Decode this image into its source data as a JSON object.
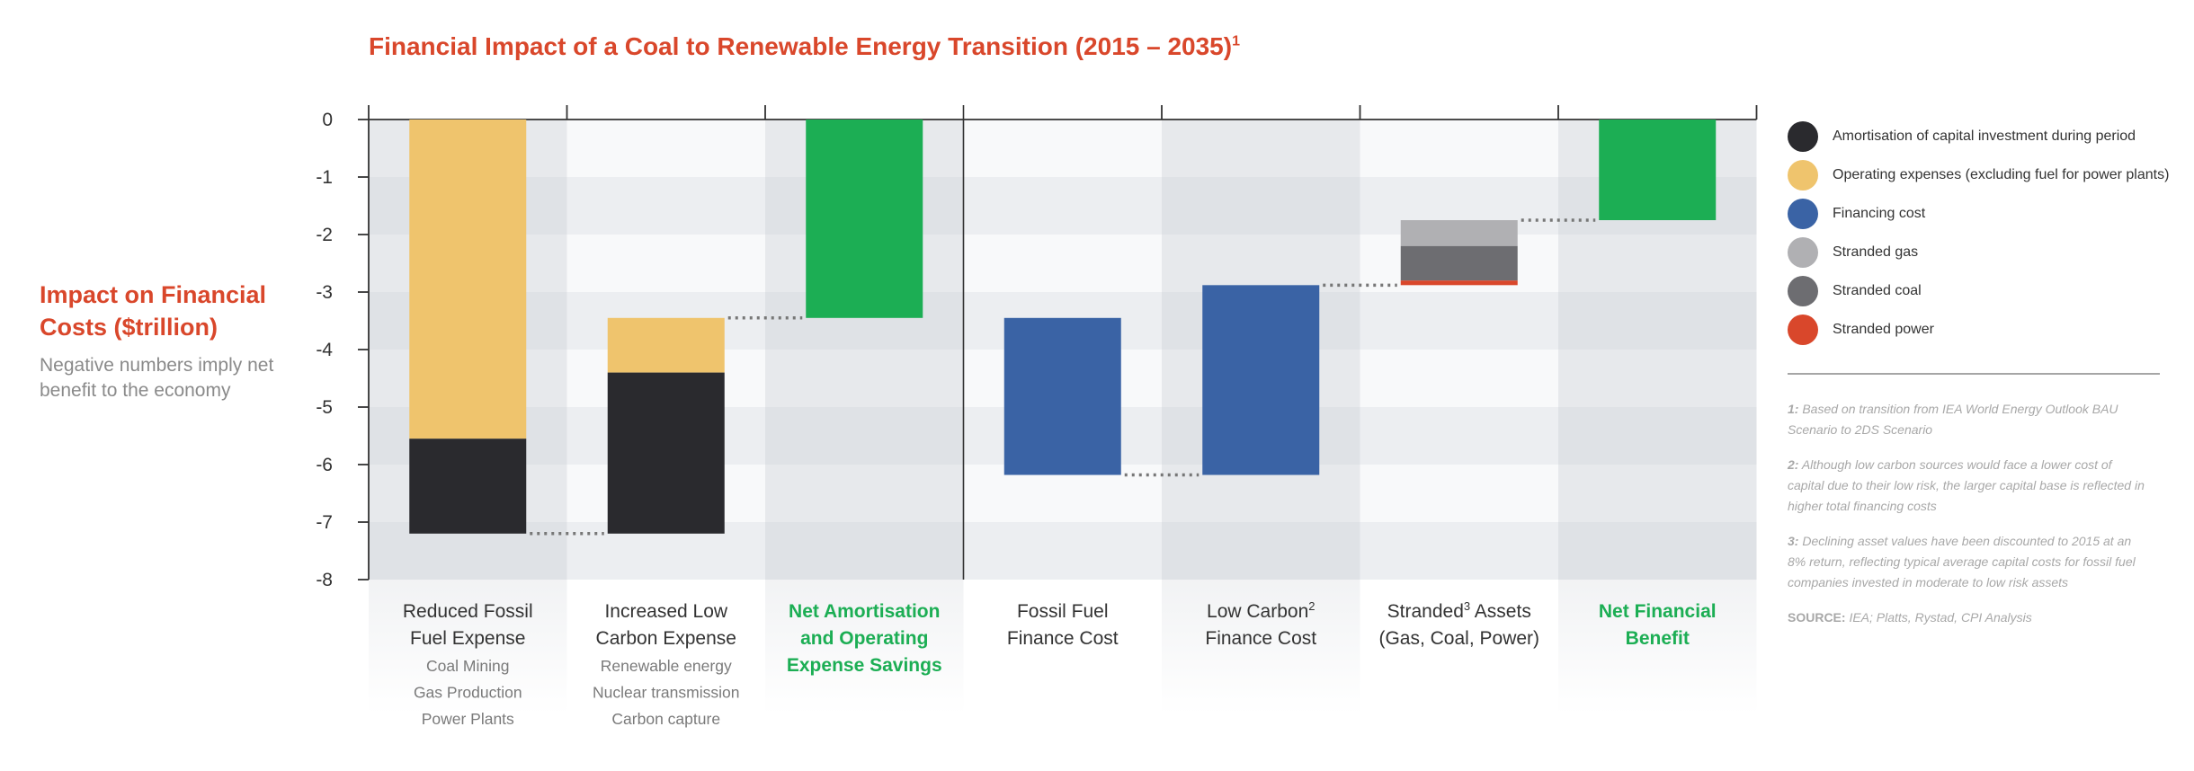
{
  "title": "Financial Impact of a Coal to Renewable Energy Transition (2015 – 2035)",
  "title_sup": "1",
  "y_title": "Impact on Financial Costs ($trillion)",
  "y_subtitle": "Negative numbers imply net benefit to the economy",
  "colors": {
    "amortisation": "#2a2a2e",
    "opex": "#efc46d",
    "financing": "#3a63a5",
    "stranded_gas": "#b0b0b3",
    "stranded_coal": "#6d6d71",
    "stranded_power": "#d9472b",
    "net_benefit": "#1cae54",
    "title_red": "#d9472b"
  },
  "legend": [
    {
      "label": "Amortisation of capital investment during period",
      "color": "#2a2a2e"
    },
    {
      "label": "Operating expenses (excluding fuel for power plants)",
      "color": "#efc46d"
    },
    {
      "label": "Financing cost",
      "color": "#3a63a5"
    },
    {
      "label": "Stranded gas",
      "color": "#b0b0b3"
    },
    {
      "label": "Stranded coal",
      "color": "#6d6d71"
    },
    {
      "label": "Stranded power",
      "color": "#d9472b"
    }
  ],
  "notes": [
    {
      "num": "1:",
      "text": "Based on transition from IEA World Energy Outlook BAU Scenario to 2DS Scenario"
    },
    {
      "num": "2:",
      "text": "Although low carbon sources would face a lower cost of capital due to their low risk, the larger capital base is reflected in higher total financing costs"
    },
    {
      "num": "3:",
      "text": "Declining asset values have been discounted to 2015 at an 8% return, reflecting typical average capital costs for fossil fuel companies invested in moderate to low risk assets"
    }
  ],
  "source_label": "SOURCE:",
  "source_text": "IEA; Platts, Rystad, CPI Analysis",
  "chart_data": {
    "type": "bar",
    "subtype": "waterfall",
    "title": "Financial Impact of a Coal to Renewable Energy Transition (2015 – 2035)",
    "ylabel": "Impact on Financial Costs ($trillion)",
    "ylim": [
      -8,
      0
    ],
    "yticks": [
      "0",
      "-1",
      "-2",
      "-3",
      "-4",
      "-5",
      "-6",
      "-7",
      "-8"
    ],
    "grid": true,
    "legend_position": "right",
    "categories": [
      {
        "line1": "Reduced Fossil",
        "line2": "Fuel Expense",
        "line3": "",
        "sup": "",
        "highlight": false,
        "shaded": true,
        "sub": [
          "Coal Mining",
          "Gas Production",
          "Power Plants"
        ]
      },
      {
        "line1": "Increased Low",
        "line2": "Carbon Expense",
        "line3": "",
        "sup": "",
        "highlight": false,
        "shaded": false,
        "sub": [
          "Renewable energy",
          "Nuclear transmission",
          "Carbon capture"
        ]
      },
      {
        "line1": "Net Amortisation",
        "line2": "and Operating",
        "line3": "Expense Savings",
        "sup": "",
        "highlight": true,
        "shaded": true,
        "sub": []
      },
      {
        "line1": "Fossil Fuel",
        "line2": "Finance Cost",
        "line3": "",
        "sup": "",
        "highlight": false,
        "shaded": false,
        "sub": []
      },
      {
        "line1": "Low Carbon",
        "line2": "Finance Cost",
        "line3": "",
        "sup": "2",
        "highlight": false,
        "shaded": true,
        "sub": []
      },
      {
        "line1": "Stranded",
        "line2": "(Gas, Coal, Power)",
        "line3": "",
        "sup": "3",
        "sup_after_line1": " Assets",
        "highlight": false,
        "shaded": false,
        "sub": []
      },
      {
        "line1": "Net Financial",
        "line2": "Benefit",
        "line3": "",
        "sup": "",
        "highlight": true,
        "shaded": true,
        "sub": []
      }
    ],
    "bars": [
      {
        "category": 0,
        "segments": [
          {
            "series": "Operating expenses (excluding fuel for power plants)",
            "from": 0,
            "to": -5.55,
            "color": "#efc46d"
          },
          {
            "series": "Amortisation of capital investment during period",
            "from": -5.55,
            "to": -7.2,
            "color": "#2a2a2e"
          }
        ]
      },
      {
        "category": 1,
        "segments": [
          {
            "series": "Operating expenses (excluding fuel for power plants)",
            "from": -3.45,
            "to": -4.4,
            "color": "#efc46d"
          },
          {
            "series": "Amortisation of capital investment during period",
            "from": -4.4,
            "to": -7.2,
            "color": "#2a2a2e"
          }
        ]
      },
      {
        "category": 2,
        "segments": [
          {
            "series": "",
            "from": 0,
            "to": -3.45,
            "color": "#1cae54"
          }
        ]
      },
      {
        "category": 3,
        "segments": [
          {
            "series": "Financing cost",
            "from": -3.45,
            "to": -6.18,
            "color": "#3a63a5"
          }
        ]
      },
      {
        "category": 4,
        "segments": [
          {
            "series": "Financing cost",
            "from": -2.88,
            "to": -6.18,
            "color": "#3a63a5"
          }
        ]
      },
      {
        "category": 5,
        "segments": [
          {
            "series": "Stranded gas",
            "from": -1.75,
            "to": -2.2,
            "color": "#b0b0b3"
          },
          {
            "series": "Stranded coal",
            "from": -2.2,
            "to": -2.8,
            "color": "#6d6d71"
          },
          {
            "series": "Stranded power",
            "from": -2.8,
            "to": -2.88,
            "color": "#d9472b"
          }
        ]
      },
      {
        "category": 6,
        "segments": [
          {
            "series": "",
            "from": 0,
            "to": -1.75,
            "color": "#1cae54"
          }
        ]
      }
    ],
    "connectors": [
      {
        "from_cat": 0,
        "to_cat": 1,
        "y": -7.2
      },
      {
        "from_cat": 1,
        "to_cat": 2,
        "y": -3.45
      },
      {
        "from_cat": 3,
        "to_cat": 4,
        "y": -6.18
      },
      {
        "from_cat": 4,
        "to_cat": 5,
        "y": -2.88
      },
      {
        "from_cat": 5,
        "to_cat": 6,
        "y": -1.75
      }
    ],
    "divider_after_category": 2
  }
}
